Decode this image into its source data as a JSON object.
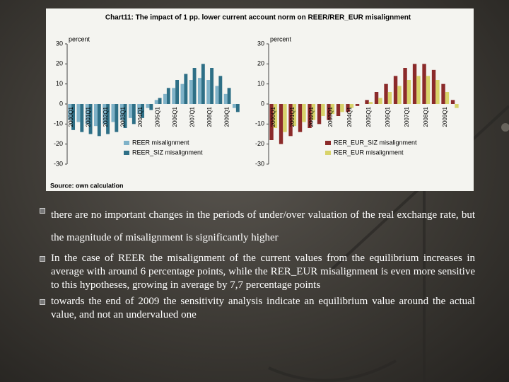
{
  "chart_data": [
    {
      "type": "bar",
      "title": "Chart11: The impact of 1 pp. lower current account norm on REER/RER_EUR misalignment",
      "ylabel": "percent",
      "categories": [
        "2000Q1",
        null,
        "2001Q1",
        null,
        "2002Q1",
        null,
        "2003Q1",
        null,
        "2004Q1",
        null,
        "2005Q1",
        null,
        "2006Q1",
        null,
        "2007Q1",
        null,
        "2008Q1",
        null,
        "2009Q1",
        null
      ],
      "series": [
        {
          "name": "REER misalignment",
          "color": "#7fb2c8",
          "values": [
            -8,
            -9,
            -10,
            -11,
            -10,
            -9,
            -8,
            -7,
            -5,
            -2,
            2,
            5,
            8,
            10,
            12,
            13,
            12,
            9,
            5,
            -2
          ]
        },
        {
          "name": "REER_SIZ misalignment",
          "color": "#2e6f86",
          "values": [
            -13,
            -14,
            -15,
            -16,
            -15,
            -14,
            -12,
            -10,
            -7,
            -3,
            3,
            8,
            12,
            15,
            18,
            20,
            18,
            14,
            8,
            -4
          ]
        }
      ],
      "ylim": [
        -30,
        30
      ],
      "yticks": [
        -30,
        -20,
        -10,
        0,
        10,
        20,
        30
      ],
      "grid": false,
      "legend": "bottom"
    },
    {
      "type": "bar",
      "ylabel": "percent",
      "categories": [
        "2000Q1",
        null,
        "2001Q1",
        null,
        "2002Q1",
        null,
        "2003Q1",
        null,
        "2004Q1",
        null,
        "2005Q1",
        null,
        "2006Q1",
        null,
        "2007Q1",
        null,
        "2008Q1",
        null,
        "2009Q1",
        null
      ],
      "series": [
        {
          "name": "RER_EUR_SIZ misalignment",
          "color": "#8b2a2a",
          "values": [
            -18,
            -20,
            -16,
            -14,
            -12,
            -10,
            -8,
            -6,
            -4,
            -1,
            2,
            6,
            10,
            14,
            18,
            20,
            20,
            17,
            10,
            2
          ]
        },
        {
          "name": "RER_EUR misalignment",
          "color": "#d8d36a",
          "values": [
            -12,
            -14,
            -11,
            -9,
            -8,
            -6,
            -5,
            -4,
            -2,
            0,
            1,
            3,
            6,
            9,
            12,
            14,
            14,
            12,
            6,
            -2
          ]
        }
      ],
      "ylim": [
        -30,
        30
      ],
      "yticks": [
        -30,
        -20,
        -10,
        0,
        10,
        20,
        30
      ],
      "grid": false,
      "legend": "bottom"
    }
  ],
  "source": "Source: own calculation",
  "bullets": [
    "there are no important changes in the periods of under/over valuation of the real exchange rate, but the magnitude of misalignment is significantly higher",
    "In the case of REER the misalignment of the current values from the equilibrium increases in average with around 6 percentage points, while the RER_EUR misalignment is even more sensitive to this hypotheses, growing in average by 7,7 percentage points",
    "towards the end of 2009 the sensitivity analysis indicate an equilibrium value around the actual value, and not an undervalued one"
  ]
}
